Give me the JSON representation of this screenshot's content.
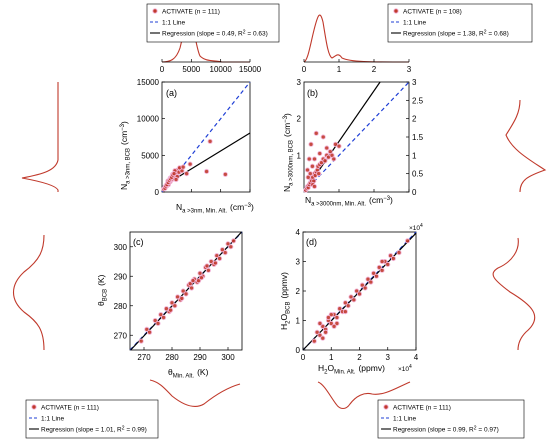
{
  "colors": {
    "points": "#c0392b",
    "point_halo": "#f3b6d9",
    "regression": "#000000",
    "one_to_one": "#1f3fd6",
    "marginal": "#c0392b"
  },
  "chart_data": [
    {
      "panel": "(a)",
      "type": "scatter",
      "xlabel_main": "N",
      "xlabel_sub": "a >3nm, Min. Alt.",
      "xlabel_unit": "(cm",
      "xlabel_exp": "−3",
      "xlabel_close": ")",
      "ylabel_main": "N",
      "ylabel_sub": "a >3nm, BCB",
      "ylabel_unit": "(cm",
      "ylabel_exp": "−3",
      "ylabel_close": ")",
      "xlim": [
        0,
        15000
      ],
      "ylim": [
        0,
        15000
      ],
      "xticks": [
        0,
        5000,
        10000,
        15000
      ],
      "xtick_labels": [
        "0",
        "5000",
        "10000",
        "15000"
      ],
      "yticks": [
        0,
        5000,
        10000,
        15000
      ],
      "ytick_labels": [
        "0",
        "5000",
        "10000",
        "15000"
      ],
      "legend_location": "top (outside)",
      "legend": [
        "ACTIVATE (n = 111)",
        "1:1 Line",
        "Regression (slope = 0.49, R",
        "2",
        " = 0.63)"
      ],
      "regression": {
        "slope": 0.49,
        "intercept": 700
      },
      "series": [
        {
          "name": "ACTIVATE (n = 111)",
          "x": [
            300,
            450,
            600,
            700,
            800,
            900,
            1000,
            1100,
            1200,
            1300,
            1400,
            1500,
            1600,
            1700,
            1800,
            1900,
            2000,
            2100,
            2200,
            2300,
            2500,
            2700,
            2900,
            3100,
            3400,
            1000,
            1400,
            1800,
            2200,
            2600,
            500,
            650,
            850,
            1050,
            1250,
            1450,
            1650,
            1850,
            2050,
            2400,
            3000,
            3600,
            4200,
            4800,
            7600,
            10800,
            8200
          ],
          "y": [
            400,
            600,
            700,
            900,
            800,
            1100,
            1200,
            1000,
            1300,
            1500,
            1400,
            1600,
            1800,
            1700,
            2100,
            1900,
            2300,
            2200,
            2600,
            2800,
            2400,
            3000,
            2700,
            3200,
            2900,
            1500,
            1900,
            2400,
            2900,
            2100,
            500,
            800,
            1000,
            1300,
            1600,
            1800,
            2000,
            2300,
            2500,
            1700,
            3300,
            3400,
            2500,
            3800,
            2800,
            2400,
            6900
          ]
        }
      ]
    },
    {
      "panel": "(b)",
      "type": "scatter",
      "xlabel_main": "N",
      "xlabel_sub": "a >3000nm, Min. Alt.",
      "xlabel_unit": "(cm",
      "xlabel_exp": "−3",
      "xlabel_close": ")",
      "ylabel_main": "N",
      "ylabel_sub": "a >3000nm, BCB",
      "ylabel_unit": "(cm",
      "ylabel_exp": "−3",
      "ylabel_close": ")",
      "xlim": [
        0,
        3
      ],
      "ylim": [
        0,
        3
      ],
      "xticks": [
        0,
        1,
        2,
        3
      ],
      "xtick_labels": [
        "0",
        "1",
        "2",
        "3"
      ],
      "yticks": [
        0,
        0.5,
        1,
        1.5,
        2,
        2.5,
        3
      ],
      "ytick_labels": [
        "0",
        "0.5",
        "1",
        "1.5",
        "2",
        "2.5",
        "3"
      ],
      "legend_location": "top (outside)",
      "legend": [
        "ACTIVATE (n = 108)",
        "1:1 Line",
        "Regression (slope = 1.38, R",
        "2",
        " = 0.68)"
      ],
      "regression": {
        "slope": 1.38,
        "intercept": 0
      },
      "series": [
        {
          "name": "ACTIVATE (n = 108)",
          "x": [
            0.05,
            0.08,
            0.1,
            0.12,
            0.15,
            0.18,
            0.2,
            0.22,
            0.25,
            0.28,
            0.3,
            0.32,
            0.35,
            0.38,
            0.4,
            0.42,
            0.45,
            0.5,
            0.55,
            0.6,
            0.65,
            0.7,
            0.75,
            0.8,
            0.9,
            1.0,
            0.1,
            0.15,
            0.2,
            0.25,
            0.3,
            0.35,
            0.12,
            0.18,
            0.24,
            0.3,
            0.45,
            0.55,
            0.65,
            0.85
          ],
          "y": [
            0.05,
            0.1,
            0.15,
            0.12,
            0.2,
            0.25,
            0.35,
            0.3,
            0.4,
            0.3,
            0.5,
            0.45,
            0.55,
            0.6,
            0.7,
            0.5,
            0.75,
            0.8,
            0.9,
            0.85,
            1.0,
            0.95,
            1.1,
            1.0,
            1.3,
            1.25,
            0.6,
            0.9,
            1.3,
            0.2,
            0.15,
            1.6,
            0.4,
            0.5,
            0.7,
            0.9,
            1.05,
            1.5,
            1.2,
            0.9
          ]
        }
      ]
    },
    {
      "panel": "(c)",
      "type": "scatter",
      "xlabel_main": "θ",
      "xlabel_sub": "Min. Alt.",
      "xlabel_unit": "(K)",
      "ylabel_main": "θ",
      "ylabel_sub": "BCB",
      "ylabel_unit": "(K)",
      "xlim": [
        265,
        305
      ],
      "ylim": [
        265,
        305
      ],
      "xticks": [
        270,
        280,
        290,
        300
      ],
      "xtick_labels": [
        "270",
        "280",
        "290",
        "300"
      ],
      "yticks": [
        270,
        280,
        290,
        300
      ],
      "ytick_labels": [
        "270",
        "280",
        "290",
        "300"
      ],
      "legend_location": "bottom-left (outside)",
      "legend": [
        "ACTIVATE (n = 111)",
        "1:1 Line",
        "Regression (slope = 1.01, R",
        "2",
        " = 0.99)"
      ],
      "regression": {
        "slope": 1.01,
        "intercept": -2.9
      },
      "series": [
        {
          "name": "ACTIVATE (n = 111)",
          "x": [
            269,
            271,
            272,
            274,
            275,
            276,
            277,
            278,
            279,
            280,
            281,
            282,
            283,
            284,
            285,
            286,
            287,
            288,
            289,
            290,
            291,
            292,
            293,
            294,
            295,
            296,
            297,
            298,
            299,
            300,
            301,
            302,
            283.5,
            286.5,
            289.5,
            292.5,
            295.5,
            279.5,
            287.5,
            290.5
          ],
          "y": [
            268,
            272,
            271,
            275,
            274,
            277,
            276,
            279,
            278,
            281,
            280,
            283,
            282,
            285,
            284,
            287,
            286,
            289,
            288,
            291,
            290,
            293,
            292,
            295,
            294,
            297,
            296,
            299,
            298,
            301,
            300,
            302,
            282.5,
            287.5,
            288.5,
            293.5,
            294.5,
            278.5,
            288.5,
            289.5
          ]
        }
      ]
    },
    {
      "panel": "(d)",
      "type": "scatter",
      "xlabel_main": "H",
      "xlabel_sub2": "2",
      "xlabel_mid": "O",
      "xlabel_sub": "Min. Alt.",
      "xlabel_unit": "(ppmv)",
      "ylabel_main": "H",
      "ylabel_sub2": "2",
      "ylabel_mid": "O",
      "ylabel_sub": "BCB",
      "ylabel_unit": "(ppmv)",
      "multiplier_base": "×10",
      "multiplier_exp": "4",
      "xlim": [
        0,
        4
      ],
      "ylim": [
        0,
        4
      ],
      "xticks": [
        0,
        1,
        2,
        3,
        4
      ],
      "xtick_labels": [
        "0",
        "1",
        "2",
        "3",
        "4"
      ],
      "yticks": [
        0,
        1,
        2,
        3,
        4
      ],
      "ytick_labels": [
        "0",
        "1",
        "2",
        "3",
        "4"
      ],
      "legend_location": "bottom-right (outside)",
      "legend": [
        "ACTIVATE (n = 111)",
        "1:1 Line",
        "Regression (slope = 0.99, R",
        "2",
        " = 0.97)"
      ],
      "regression": {
        "slope": 0.99,
        "intercept": 0
      },
      "series": [
        {
          "name": "ACTIVATE (n = 111)",
          "x": [
            0.4,
            0.5,
            0.6,
            0.7,
            0.8,
            0.9,
            1.0,
            1.1,
            1.2,
            1.3,
            1.4,
            1.5,
            1.6,
            1.7,
            1.8,
            1.9,
            2.0,
            2.1,
            2.2,
            2.3,
            2.4,
            2.5,
            2.6,
            2.7,
            2.8,
            2.9,
            3.0,
            3.1,
            3.2,
            3.4,
            0.6,
            0.8,
            1.0,
            1.2,
            0.7,
            0.9,
            1.1,
            1.5,
            2.8,
            3.7
          ],
          "y": [
            0.3,
            0.6,
            0.5,
            0.8,
            0.7,
            1.0,
            0.9,
            1.2,
            1.1,
            1.4,
            1.3,
            1.6,
            1.5,
            1.8,
            1.7,
            2.0,
            1.9,
            2.2,
            2.1,
            2.4,
            2.3,
            2.6,
            2.5,
            2.8,
            2.7,
            3.0,
            2.9,
            3.2,
            3.1,
            3.3,
            0.9,
            0.6,
            1.2,
            0.9,
            0.4,
            1.1,
            0.8,
            1.3,
            3.0,
            3.7
          ]
        }
      ]
    }
  ]
}
